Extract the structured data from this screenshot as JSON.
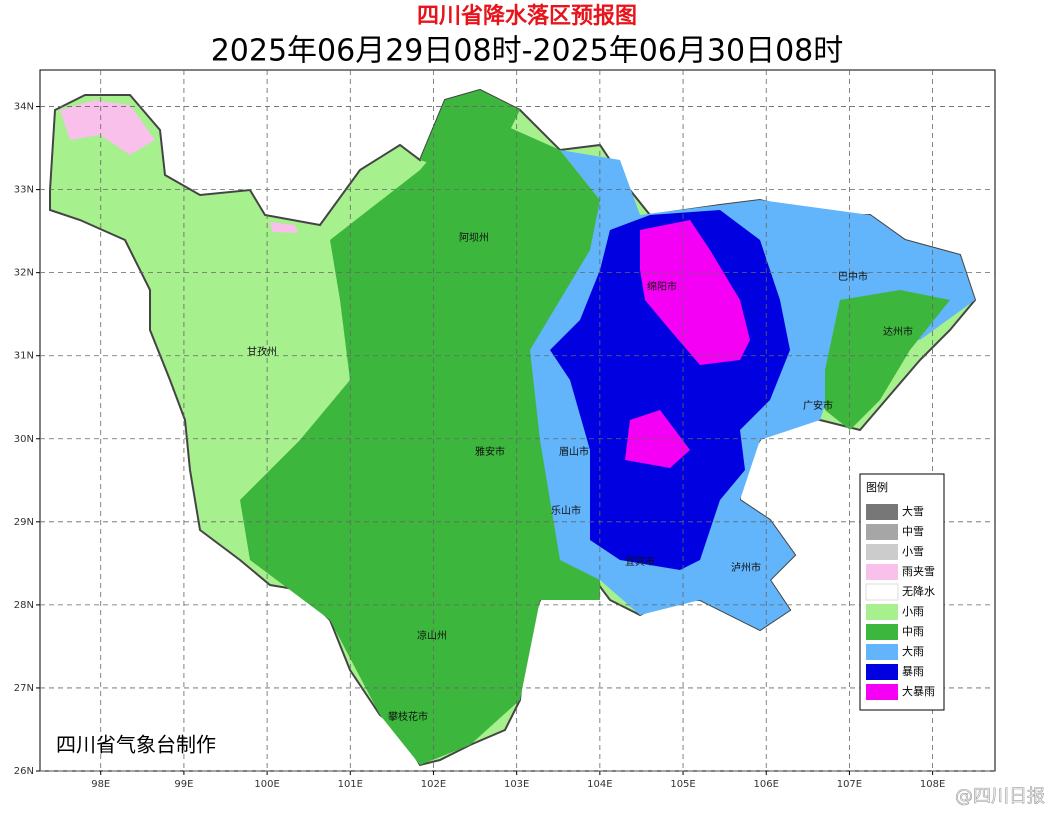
{
  "header": {
    "title": "四川省降水落区预报图",
    "subtitle": "2025年06月29日08时-2025年06月30日08时"
  },
  "map": {
    "lonlim": [
      97.27,
      108.75
    ],
    "latlim": [
      26,
      34.44
    ],
    "lon_ticks": [
      {
        "value": 98,
        "label": "98E"
      },
      {
        "value": 99,
        "label": "99E"
      },
      {
        "value": 100,
        "label": "100E"
      },
      {
        "value": 101,
        "label": "101E"
      },
      {
        "value": 102,
        "label": "102E"
      },
      {
        "value": 103,
        "label": "103E"
      },
      {
        "value": 104,
        "label": "104E"
      },
      {
        "value": 105,
        "label": "105E"
      },
      {
        "value": 106,
        "label": "106E"
      },
      {
        "value": 107,
        "label": "107E"
      },
      {
        "value": 108,
        "label": "108E"
      }
    ],
    "lat_ticks": [
      {
        "value": 26,
        "label": "26N"
      },
      {
        "value": 27,
        "label": "27N"
      },
      {
        "value": 28,
        "label": "28N"
      },
      {
        "value": 29,
        "label": "29N"
      },
      {
        "value": 30,
        "label": "30N"
      },
      {
        "value": 31,
        "label": "31N"
      },
      {
        "value": 32,
        "label": "32N"
      },
      {
        "value": 33,
        "label": "33N"
      },
      {
        "value": 34,
        "label": "34N"
      }
    ],
    "cities": [
      "阿坝州",
      "甘孜州",
      "绵阳市",
      "巴中市",
      "达州市",
      "广安市",
      "雅安市",
      "眉山市",
      "乐山市",
      "泸州市",
      "凉山州",
      "攀枝花市",
      "宜宾市"
    ],
    "credit": "四川省气象台制作"
  },
  "legend": {
    "title": "图例",
    "items": [
      {
        "label": "大雪",
        "color": "#777777"
      },
      {
        "label": "中雪",
        "color": "#a6a6a6"
      },
      {
        "label": "小雪",
        "color": "#cccccc"
      },
      {
        "label": "雨夹雪",
        "color": "#f9c0ec"
      },
      {
        "label": "无降水",
        "color": "#ffffff"
      },
      {
        "label": "小雨",
        "color": "#a6f08e"
      },
      {
        "label": "中雨",
        "color": "#3db63d"
      },
      {
        "label": "大雨",
        "color": "#62b4fb"
      },
      {
        "label": "暴雨",
        "color": "#0000e0"
      },
      {
        "label": "大暴雨",
        "color": "#f400f4"
      }
    ]
  },
  "watermark": "@四川日报"
}
